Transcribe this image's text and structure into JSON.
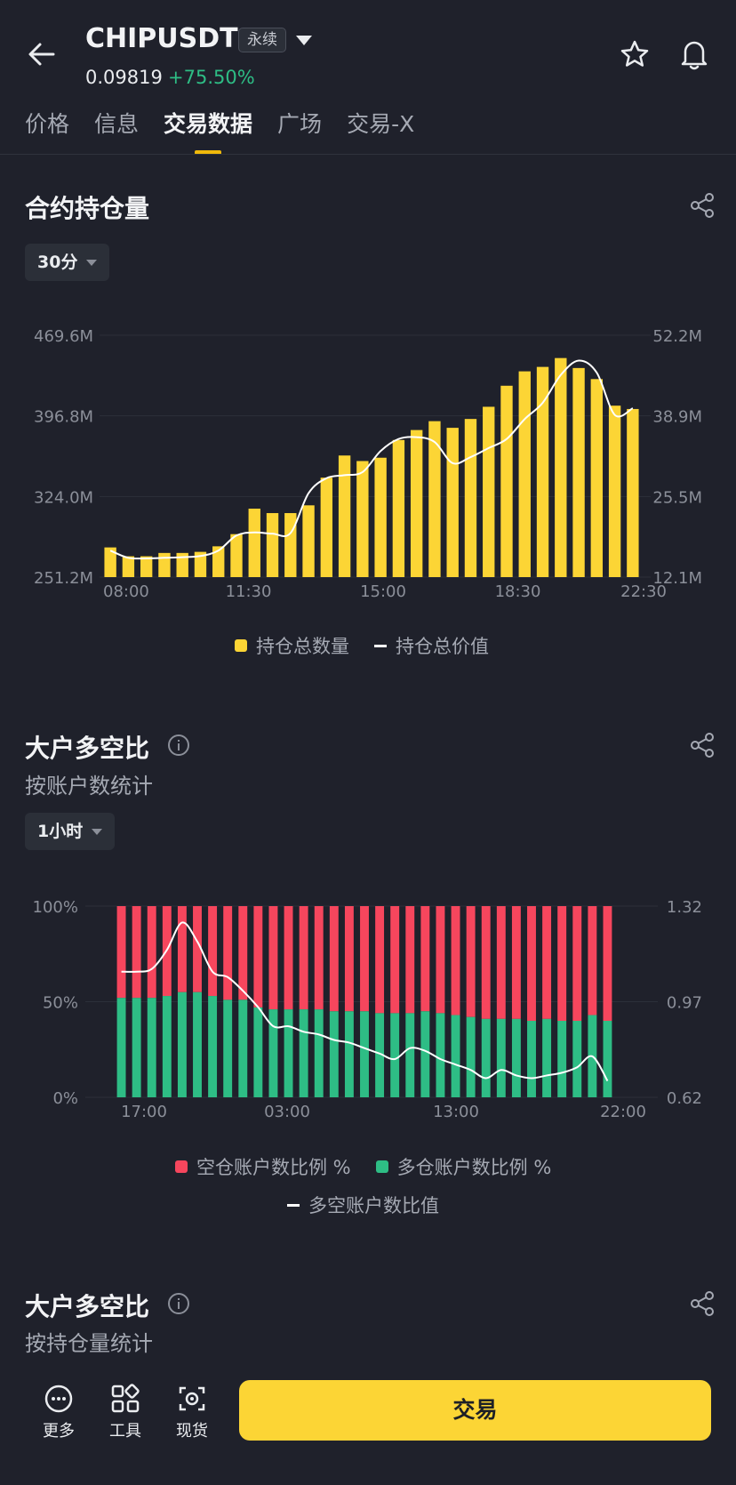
{
  "header": {
    "symbol": "CHIPUSDT",
    "contract_type": "永续",
    "price": "0.09819",
    "change": "+75.50%"
  },
  "tabs": [
    {
      "label": "价格",
      "active": false
    },
    {
      "label": "信息",
      "active": false
    },
    {
      "label": "交易数据",
      "active": true
    },
    {
      "label": "广场",
      "active": false
    },
    {
      "label": "交易-X",
      "active": false
    }
  ],
  "open_interest": {
    "title": "合约持仓量",
    "interval": "30分"
  },
  "top_ratio_accounts": {
    "title": "大户多空比",
    "subtitle": "按账户数统计",
    "interval": "1小时"
  },
  "top_ratio_positions": {
    "title": "大户多空比",
    "subtitle": "按持仓量统计"
  },
  "bottom_bar": {
    "more_label": "更多",
    "tools_label": "工具",
    "spot_label": "现货",
    "trade_label": "交易"
  },
  "colors": {
    "bar_yellow": "#fcd535",
    "short_red": "#f6465d",
    "long_green": "#2ebd85",
    "line_white": "#ffffff"
  },
  "chart_data": [
    {
      "type": "bar",
      "title": "合约持仓量",
      "x_ticks": [
        "08:00",
        "11:30",
        "15:00",
        "18:30",
        "22:30"
      ],
      "left_axis": {
        "ticks": [
          "469.6M",
          "396.8M",
          "324.0M",
          "251.2M"
        ],
        "range": [
          251.2,
          469.6
        ]
      },
      "right_axis": {
        "ticks": [
          "52.2M",
          "38.9M",
          "25.5M",
          "12.1M"
        ],
        "range": [
          12.1,
          52.2
        ]
      },
      "series": [
        {
          "name": "持仓总数量",
          "kind": "bar",
          "axis": "left",
          "unit": "M",
          "values": [
            278,
            270,
            270,
            273,
            273,
            274,
            279,
            290,
            313,
            309,
            309,
            316,
            341,
            361,
            356,
            359,
            375,
            384,
            392,
            386,
            394,
            405,
            424,
            437,
            441,
            449,
            440,
            430,
            406,
            403
          ]
        },
        {
          "name": "持仓总价值",
          "kind": "line",
          "axis": "right",
          "unit": "M",
          "values": [
            16.5,
            15.3,
            15.2,
            15.3,
            15.4,
            15.6,
            16.5,
            19.0,
            19.5,
            19.3,
            19.4,
            26.0,
            28.5,
            29.0,
            29.5,
            33.0,
            35.0,
            35.3,
            34.5,
            31.0,
            32.0,
            33.5,
            35.0,
            38.3,
            41.0,
            45.6,
            48.0,
            46.0,
            39.0,
            40.1
          ]
        }
      ],
      "legend": [
        "持仓总数量",
        "持仓总价值"
      ]
    },
    {
      "type": "bar",
      "title": "大户多空比 按账户数统计",
      "x_ticks": [
        "17:00",
        "03:00",
        "13:00",
        "22:00"
      ],
      "left_axis": {
        "ticks": [
          "100%",
          "50%",
          "0%"
        ],
        "range": [
          0,
          100
        ]
      },
      "right_axis": {
        "ticks": [
          "1.32",
          "0.97",
          "0.62"
        ],
        "range": [
          0.62,
          1.32
        ]
      },
      "series": [
        {
          "name": "空仓账户数比例 %",
          "kind": "stacked-bar-top",
          "values": [
            48,
            48,
            48,
            47,
            45,
            45,
            47,
            49,
            49,
            53,
            54,
            54,
            54,
            54,
            55,
            55,
            55,
            56,
            56,
            56,
            55,
            56,
            57,
            58,
            59,
            59,
            59,
            60,
            59,
            60,
            60,
            57,
            60
          ]
        },
        {
          "name": "多仓账户数比例 %",
          "kind": "stacked-bar-bottom",
          "values": [
            52,
            52,
            52,
            53,
            55,
            55,
            53,
            51,
            51,
            47,
            46,
            46,
            46,
            46,
            45,
            45,
            45,
            44,
            44,
            44,
            45,
            44,
            43,
            42,
            41,
            41,
            41,
            40,
            41,
            40,
            40,
            43,
            40
          ]
        },
        {
          "name": "多空账户数比值",
          "kind": "line",
          "axis": "right",
          "values": [
            1.08,
            1.08,
            1.09,
            1.16,
            1.26,
            1.19,
            1.08,
            1.06,
            1.01,
            0.95,
            0.88,
            0.88,
            0.86,
            0.85,
            0.83,
            0.82,
            0.8,
            0.78,
            0.76,
            0.8,
            0.79,
            0.76,
            0.74,
            0.72,
            0.69,
            0.72,
            0.7,
            0.69,
            0.7,
            0.71,
            0.73,
            0.77,
            0.68
          ]
        }
      ],
      "legend": [
        "空仓账户数比例 %",
        "多仓账户数比例 %",
        "多空账户数比值"
      ]
    }
  ]
}
